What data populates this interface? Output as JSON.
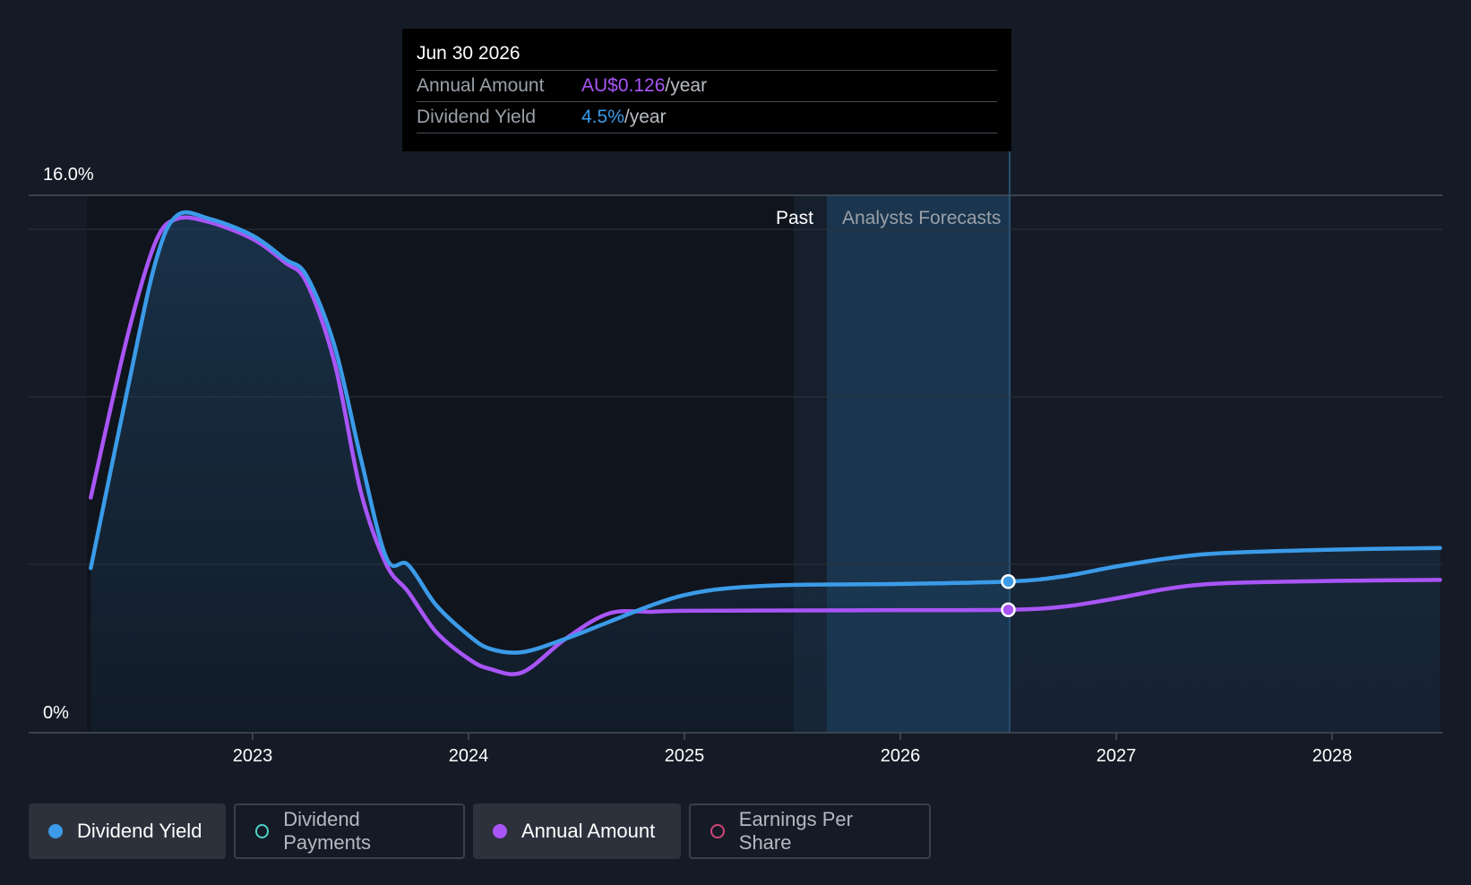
{
  "chart_data": {
    "type": "line",
    "title": "",
    "x_ticks": [
      "2023",
      "2024",
      "2025",
      "2026",
      "2027",
      "2028"
    ],
    "y_labels": {
      "top": "16.0%",
      "bottom": "0%"
    },
    "ylim": [
      0,
      16
    ],
    "sections": {
      "past": "Past",
      "forecast": "Analysts Forecasts"
    },
    "series": [
      {
        "name": "Dividend Yield",
        "color": "#3b9be8",
        "points": [
          [
            2022.25,
            4.9
          ],
          [
            2022.42,
            10.2
          ],
          [
            2022.55,
            14.0
          ],
          [
            2022.65,
            15.4
          ],
          [
            2022.8,
            15.3
          ],
          [
            2023.0,
            14.8
          ],
          [
            2023.15,
            14.1
          ],
          [
            2023.25,
            13.6
          ],
          [
            2023.38,
            11.5
          ],
          [
            2023.5,
            8.2
          ],
          [
            2023.62,
            5.2
          ],
          [
            2023.72,
            5.0
          ],
          [
            2023.85,
            3.8
          ],
          [
            2024.0,
            2.9
          ],
          [
            2024.1,
            2.5
          ],
          [
            2024.25,
            2.4
          ],
          [
            2024.45,
            2.8
          ],
          [
            2024.65,
            3.3
          ],
          [
            2024.85,
            3.8
          ],
          [
            2025.0,
            4.1
          ],
          [
            2025.2,
            4.3
          ],
          [
            2025.5,
            4.4
          ],
          [
            2026.0,
            4.43
          ],
          [
            2026.5,
            4.5
          ],
          [
            2026.75,
            4.65
          ],
          [
            2027.0,
            4.95
          ],
          [
            2027.25,
            5.2
          ],
          [
            2027.5,
            5.35
          ],
          [
            2028.0,
            5.45
          ],
          [
            2028.5,
            5.5
          ]
        ]
      },
      {
        "name": "Annual Amount",
        "color": "#a855f7",
        "points": [
          [
            2022.25,
            7.0
          ],
          [
            2022.42,
            11.8
          ],
          [
            2022.55,
            14.6
          ],
          [
            2022.65,
            15.3
          ],
          [
            2022.8,
            15.2
          ],
          [
            2023.0,
            14.7
          ],
          [
            2023.15,
            14.0
          ],
          [
            2023.25,
            13.4
          ],
          [
            2023.38,
            11.0
          ],
          [
            2023.5,
            7.2
          ],
          [
            2023.62,
            5.0
          ],
          [
            2023.72,
            4.2
          ],
          [
            2023.85,
            3.0
          ],
          [
            2024.0,
            2.2
          ],
          [
            2024.1,
            1.9
          ],
          [
            2024.25,
            1.8
          ],
          [
            2024.45,
            2.8
          ],
          [
            2024.65,
            3.55
          ],
          [
            2024.85,
            3.6
          ],
          [
            2025.0,
            3.63
          ],
          [
            2025.5,
            3.64
          ],
          [
            2026.0,
            3.65
          ],
          [
            2026.5,
            3.66
          ],
          [
            2026.75,
            3.75
          ],
          [
            2027.0,
            4.0
          ],
          [
            2027.25,
            4.3
          ],
          [
            2027.5,
            4.45
          ],
          [
            2028.0,
            4.52
          ],
          [
            2028.5,
            4.55
          ]
        ]
      }
    ],
    "highlight": {
      "x": 2026.5,
      "yield": 4.5,
      "amount": 3.66
    }
  },
  "tooltip": {
    "date": "Jun 30 2026",
    "rows": [
      {
        "key": "Annual Amount",
        "value": "AU$0.126",
        "unit": "/year"
      },
      {
        "key": "Dividend Yield",
        "value": "4.5%",
        "unit": "/year"
      }
    ]
  },
  "legend": [
    {
      "label": "Dividend Yield",
      "color": "#3b9be8",
      "active": true,
      "filled": true
    },
    {
      "label": "Dividend Payments",
      "color": "#4fd1c5",
      "active": false,
      "filled": false
    },
    {
      "label": "Annual Amount",
      "color": "#a855f7",
      "active": true,
      "filled": true
    },
    {
      "label": "Earnings Per Share",
      "color": "#d0457a",
      "active": false,
      "filled": false
    }
  ]
}
